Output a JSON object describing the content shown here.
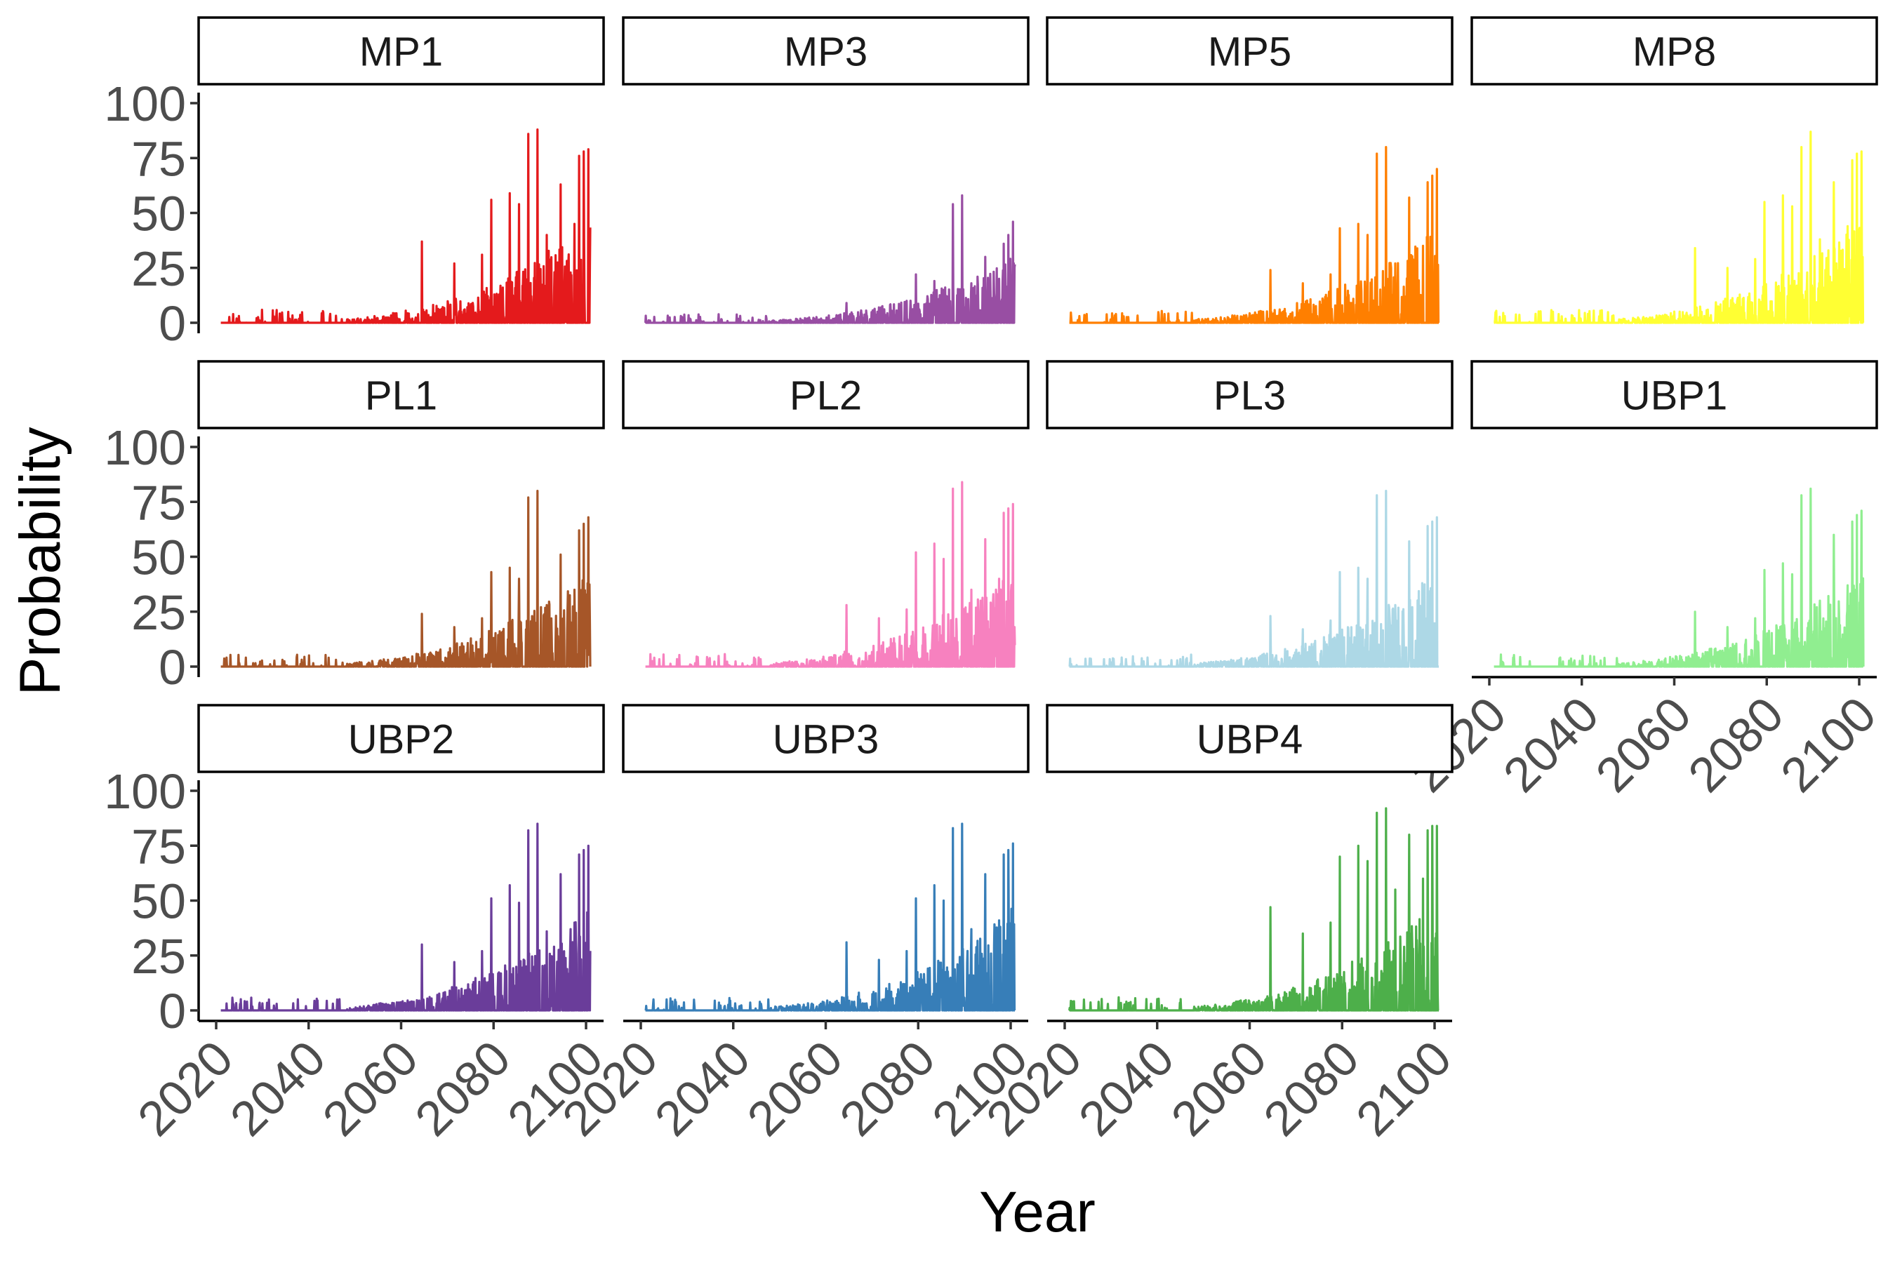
{
  "chart_data": {
    "type": "line",
    "layout": "facet",
    "xlabel": "Year",
    "ylabel": "Probability",
    "xlim": [
      2020,
      2100
    ],
    "ylim": [
      0,
      100
    ],
    "x_ticks": [
      2020,
      2040,
      2060,
      2080,
      2100
    ],
    "y_ticks": [
      0,
      25,
      50,
      75,
      100
    ],
    "grid": false,
    "legend": "none",
    "x_peak_years": [
      2064,
      2071,
      2077,
      2079,
      2083,
      2085,
      2087,
      2089,
      2091,
      2094,
      2097,
      2098,
      2099,
      2100
    ],
    "panels": [
      {
        "name": "MP1",
        "color": "#e41a1c",
        "peaks": [
          37,
          27,
          31,
          56,
          59,
          54,
          86,
          88,
          40,
          63,
          45,
          76,
          78,
          79
        ]
      },
      {
        "name": "MP3",
        "color": "#984ea3",
        "peaks": [
          9,
          7,
          10,
          22,
          19,
          15,
          54,
          58,
          18,
          30,
          20,
          36,
          40,
          46
        ]
      },
      {
        "name": "MP5",
        "color": "#ff7f00",
        "peaks": [
          24,
          18,
          22,
          43,
          45,
          40,
          77,
          80,
          27,
          57,
          35,
          64,
          67,
          70
        ]
      },
      {
        "name": "MP8",
        "color": "#ffff33",
        "peaks": [
          34,
          25,
          29,
          55,
          58,
          53,
          80,
          87,
          38,
          64,
          44,
          74,
          77,
          78
        ]
      },
      {
        "name": "PL1",
        "color": "#a65628",
        "peaks": [
          24,
          18,
          22,
          43,
          45,
          40,
          77,
          80,
          28,
          51,
          35,
          62,
          65,
          68
        ]
      },
      {
        "name": "PL2",
        "color": "#f781bf",
        "peaks": [
          28,
          22,
          26,
          52,
          56,
          49,
          81,
          84,
          35,
          58,
          40,
          70,
          72,
          74
        ]
      },
      {
        "name": "PL3",
        "color": "#add8e6",
        "peaks": [
          23,
          17,
          21,
          43,
          45,
          40,
          78,
          80,
          28,
          57,
          35,
          64,
          66,
          68
        ]
      },
      {
        "name": "UBP1",
        "color": "#90ee90",
        "peaks": [
          25,
          18,
          22,
          44,
          47,
          42,
          78,
          81,
          30,
          60,
          37,
          66,
          69,
          71
        ]
      },
      {
        "name": "UBP2",
        "color": "#6a3d9a",
        "peaks": [
          30,
          22,
          27,
          51,
          57,
          49,
          82,
          85,
          36,
          62,
          40,
          71,
          73,
          75
        ]
      },
      {
        "name": "UBP3",
        "color": "#377eb8",
        "peaks": [
          31,
          23,
          27,
          51,
          57,
          50,
          83,
          85,
          37,
          62,
          41,
          71,
          73,
          76
        ]
      },
      {
        "name": "UBP4",
        "color": "#4daf4a",
        "peaks": [
          47,
          35,
          40,
          70,
          75,
          68,
          90,
          92,
          55,
          80,
          60,
          82,
          84,
          84
        ]
      }
    ]
  }
}
